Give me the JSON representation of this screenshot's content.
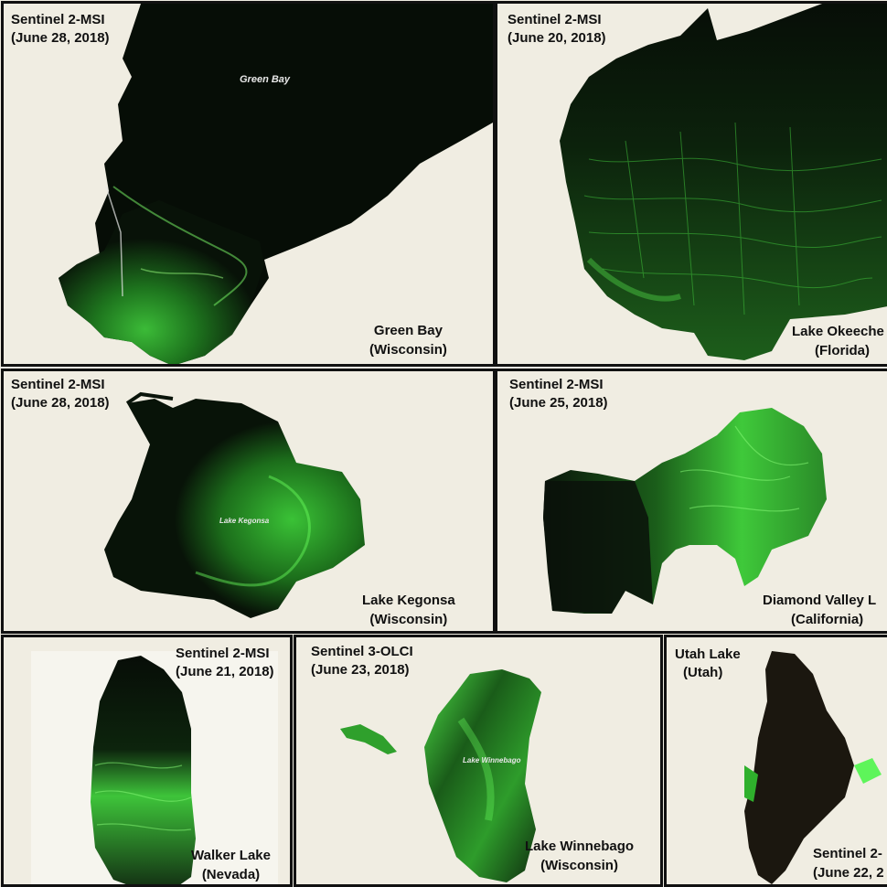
{
  "panels": [
    {
      "id": "green-bay",
      "sensor": "Sentinel 2-MSI",
      "date": "(June 28, 2018)",
      "lake_name": "Green Bay",
      "region": "(Wisconsin)",
      "inlay_label": "Green Bay"
    },
    {
      "id": "okeechobee",
      "sensor": "Sentinel 2-MSI",
      "date": "(June 20, 2018)",
      "lake_name": "Lake Okeeche",
      "region": "(Florida)"
    },
    {
      "id": "kegonsa",
      "sensor": "Sentinel 2-MSI",
      "date": "(June 28, 2018)",
      "lake_name": "Lake Kegonsa",
      "region": "(Wisconsin)",
      "inlay_label": "Lake Kegonsa"
    },
    {
      "id": "diamond-valley",
      "sensor": "Sentinel 2-MSI",
      "date": "(June 25, 2018)",
      "lake_name": "Diamond Valley L",
      "region": "(California)"
    },
    {
      "id": "walker",
      "sensor": "Sentinel 2-MSI",
      "date": "(June 21, 2018)",
      "lake_name": "Walker Lake",
      "region": "(Nevada)"
    },
    {
      "id": "winnebago",
      "sensor": "Sentinel 3-OLCI",
      "date": "(June 23, 2018)",
      "lake_name": "Lake Winnebago",
      "region": "(Wisconsin)",
      "inlay_label": "Lake Winnebago"
    },
    {
      "id": "utah",
      "sensor": "Sentinel 2-",
      "date": "(June 22, 2",
      "lake_name": "Utah Lake",
      "region": "(Utah)"
    }
  ],
  "colors": {
    "background": "#f0ede2",
    "water_dark": "#0a1408",
    "bloom_green": "#3fd63a",
    "border": "#111111"
  }
}
